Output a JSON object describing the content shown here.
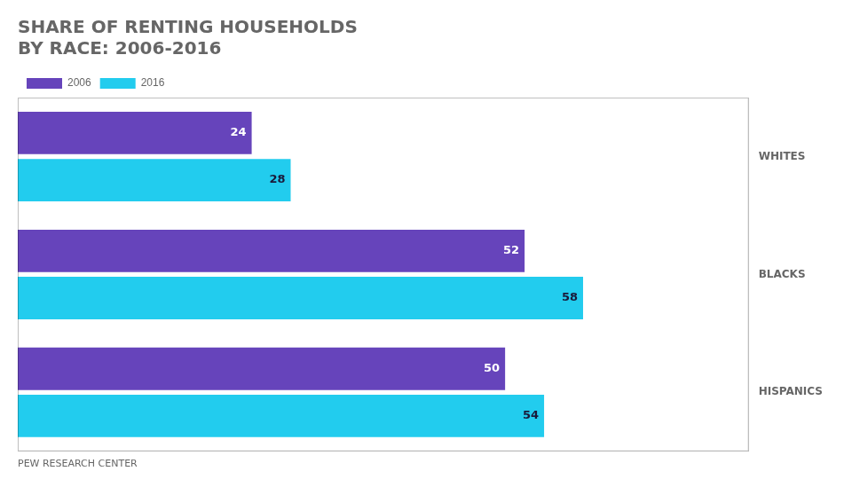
{
  "chart_data": {
    "type": "bar",
    "orientation": "horizontal",
    "title": [
      "SHARE OF RENTING HOUSEHOLDS",
      "BY RACE: 2006-2016"
    ],
    "annotations": [
      "PEW RESEARCH CENTER"
    ],
    "categories": [
      "WHITES",
      "BLACKS",
      "HISPANICS"
    ],
    "series": [
      {
        "name": "2006",
        "color": "#6644bb",
        "values": [
          24,
          52,
          50
        ]
      },
      {
        "name": "2016",
        "color": "#22ccee",
        "values": [
          28,
          58,
          54
        ]
      }
    ],
    "xlim": [
      0,
      75
    ],
    "grid": false,
    "legend": "top-left",
    "data_labels": true,
    "tick_labels": "y"
  }
}
